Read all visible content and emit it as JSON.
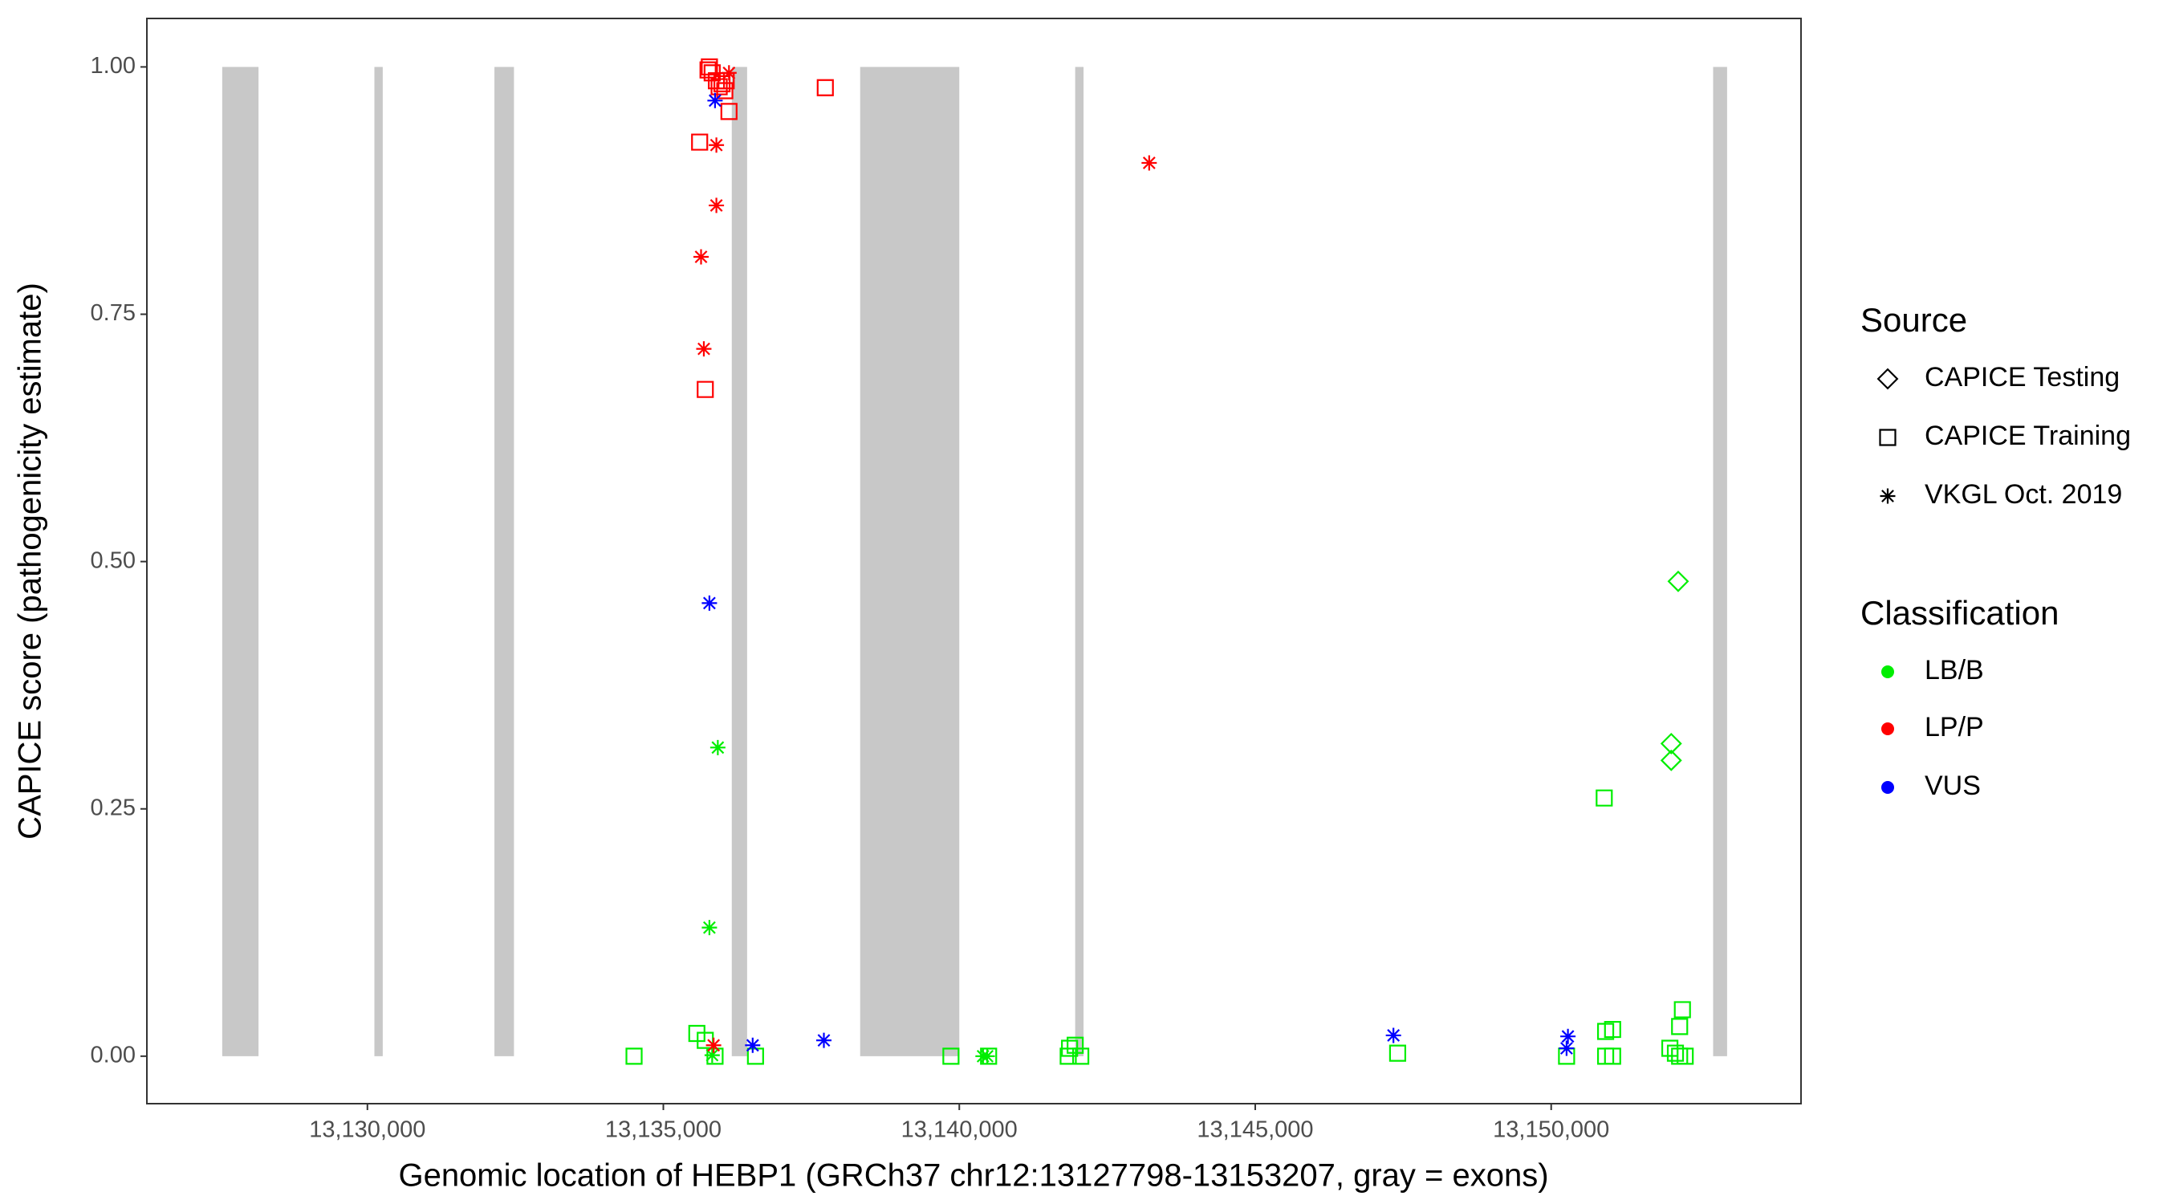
{
  "chart_data": {
    "type": "scatter",
    "xlabel": "Genomic location of HEBP1 (GRCh37 chr12:13127798-13153207, gray = exons)",
    "ylabel": "CAPICE score (pathogenicity estimate)",
    "xlim": [
      13126274,
      13154221
    ],
    "ylim": [
      -0.048,
      1.049
    ],
    "xticks": [
      {
        "value": 13130000,
        "label": "13,130,000"
      },
      {
        "value": 13135000,
        "label": "13,135,000"
      },
      {
        "value": 13140000,
        "label": "13,140,000"
      },
      {
        "value": 13145000,
        "label": "13,145,000"
      },
      {
        "value": 13150000,
        "label": "13,150,000"
      }
    ],
    "yticks": [
      {
        "value": 0,
        "label": "0.00"
      },
      {
        "value": 0.25,
        "label": "0.25"
      },
      {
        "value": 0.5,
        "label": "0.50"
      },
      {
        "value": 0.75,
        "label": "0.75"
      },
      {
        "value": 1,
        "label": "1.00"
      }
    ],
    "grid": false,
    "exon_color": "#c8c8c8",
    "exon_yrange": [
      0,
      1
    ],
    "exons": [
      [
        13127547,
        13128160
      ],
      [
        13130118,
        13130259
      ],
      [
        13132146,
        13132476
      ],
      [
        13136156,
        13136415
      ],
      [
        13138325,
        13140000
      ],
      [
        13141958,
        13142099
      ],
      [
        13152736,
        13152972
      ]
    ],
    "shape_legend": {
      "title": "Source",
      "items": [
        {
          "name": "CAPICE Testing",
          "shape": "diamond"
        },
        {
          "name": "CAPICE Training",
          "shape": "square"
        },
        {
          "name": "VKGL Oct. 2019",
          "shape": "asterisk"
        }
      ]
    },
    "color_legend": {
      "title": "Classification",
      "items": [
        {
          "name": "LB/B",
          "color": "#00ee00"
        },
        {
          "name": "LP/P",
          "color": "#ff0000"
        },
        {
          "name": "VUS",
          "color": "#0000ff"
        }
      ]
    },
    "series": [
      {
        "source": "CAPICE Testing",
        "classification": "LB/B",
        "x": [
          13152146,
          13152028,
          13152028
        ],
        "values": [
          0.48,
          0.316,
          0.299
        ]
      },
      {
        "source": "CAPICE Training",
        "classification": "LB/B",
        "x": [
          13134505,
          13135566,
          13135708,
          13135873,
          13136557,
          13139859,
          13140495,
          13141863,
          13141958,
          13141840,
          13142052,
          13147406,
          13150260,
          13150896,
          13150920,
          13151038,
          13150920,
          13151038,
          13152005,
          13152170,
          13152217,
          13152099,
          13152170,
          13152264
        ],
        "values": [
          0,
          0.023,
          0.016,
          0,
          0,
          0,
          0,
          0.008,
          0.011,
          0,
          0,
          0.003,
          0,
          0.261,
          0.025,
          0.027,
          0,
          0,
          0.008,
          0.03,
          0.047,
          0.003,
          0,
          0
        ]
      },
      {
        "source": "CAPICE Training",
        "classification": "LP/P",
        "x": [
          13135755,
          13135825,
          13135896,
          13135991,
          13136061,
          13135943,
          13136038,
          13136109,
          13135613,
          13137736,
          13135708,
          13135778
        ],
        "values": [
          0.997,
          0.994,
          0.986,
          0.983,
          0.986,
          0.98,
          0.976,
          0.955,
          0.924,
          0.979,
          0.674,
          1.0
        ]
      },
      {
        "source": "VKGL Oct. 2019",
        "classification": "LB/B",
        "x": [
          13135920,
          13135778,
          13135825,
          13140401,
          13140472
        ],
        "values": [
          0.312,
          0.13,
          0.001,
          0,
          0
        ]
      },
      {
        "source": "VKGL Oct. 2019",
        "classification": "LP/P",
        "x": [
          13136109,
          13135896,
          13135896,
          13135637,
          13135684,
          13143208,
          13135849
        ],
        "values": [
          0.994,
          0.921,
          0.86,
          0.808,
          0.715,
          0.903,
          0.011
        ]
      },
      {
        "source": "VKGL Oct. 2019",
        "classification": "VUS",
        "x": [
          13135873,
          13135778,
          13136509,
          13137712,
          13147335,
          13150283,
          13150260
        ],
        "values": [
          0.966,
          0.458,
          0.011,
          0.016,
          0.021,
          0.02,
          0.008
        ]
      }
    ]
  }
}
